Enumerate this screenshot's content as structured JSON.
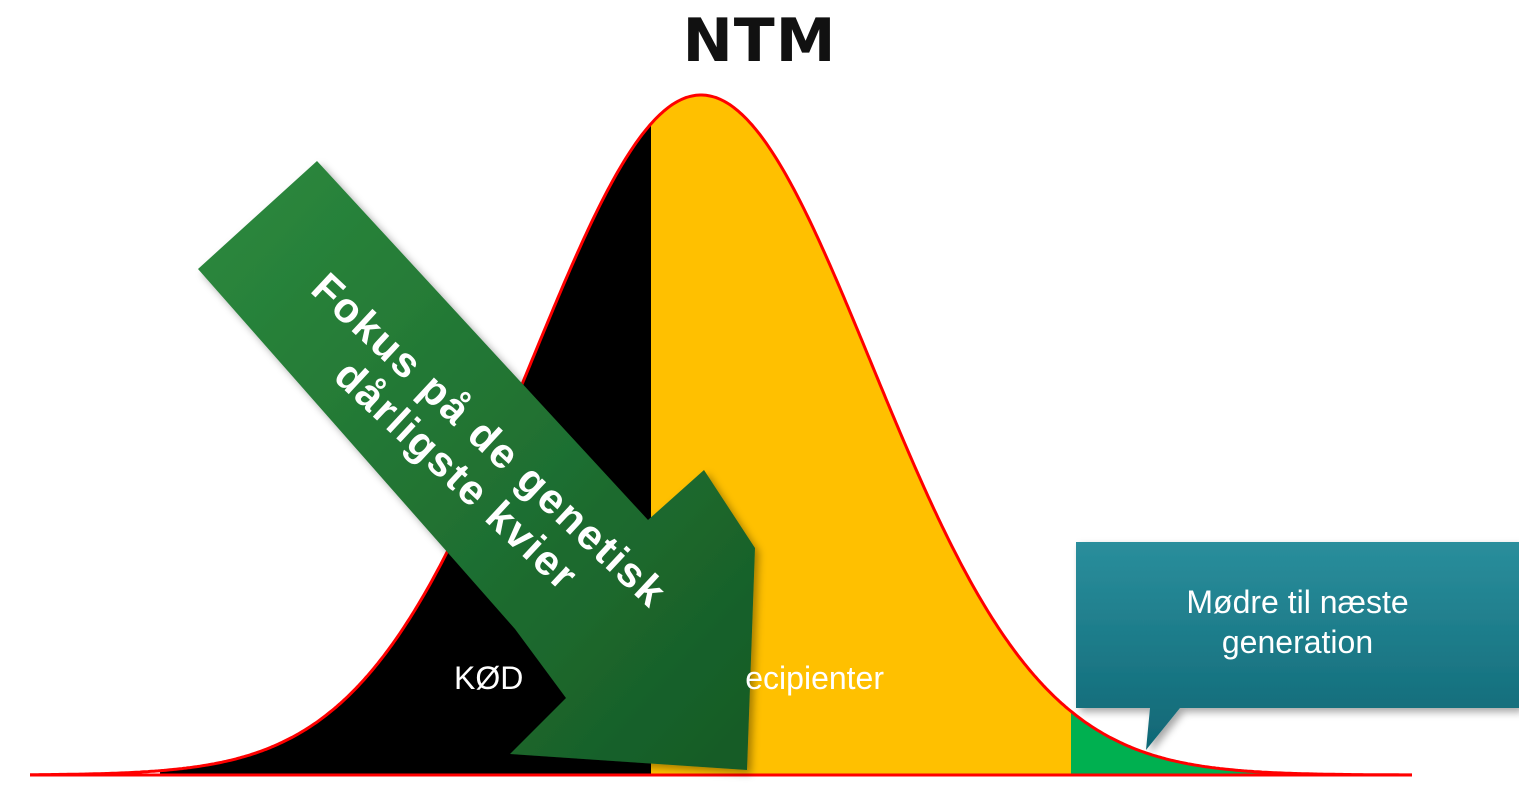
{
  "title": "NTM",
  "segments": [
    {
      "label": "KØD",
      "color": "#000000"
    },
    {
      "label": "Recipienter",
      "color": "#ffc000"
    },
    {
      "label": "",
      "color": "#00b050"
    }
  ],
  "curve_color": "#ff0000",
  "arrow": {
    "line1": "Fokus på de genetisk",
    "line2": "dårligste kvier",
    "color": "#1e6b2f"
  },
  "callout": {
    "line1": "Mødre til næste",
    "line2": "generation",
    "color": "#116f7c"
  }
}
